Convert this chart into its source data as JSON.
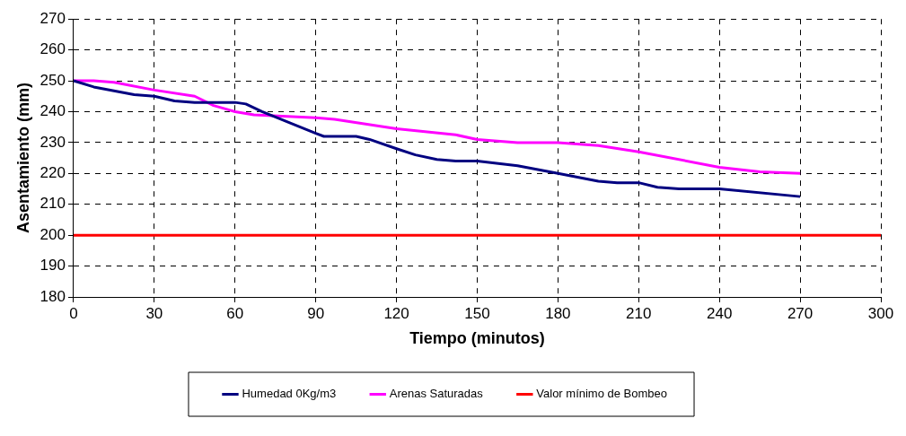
{
  "chart_data": {
    "type": "line",
    "xlabel": "Tiempo (minutos)",
    "ylabel": "Asentamiento (mm)",
    "xlim": [
      0,
      300
    ],
    "xticks": [
      0,
      30,
      60,
      90,
      120,
      150,
      180,
      210,
      240,
      270,
      300
    ],
    "ylim": [
      180,
      270
    ],
    "yticks": [
      180,
      190,
      200,
      210,
      220,
      230,
      240,
      250,
      260,
      270
    ],
    "grid": true,
    "legend": "bottom",
    "marker": "none",
    "line_style": "solid",
    "series": [
      {
        "name": "Humedad 0Kg/m3",
        "color": "#000080",
        "x": [
          0,
          7.5,
          22.5,
          30,
          37.5,
          45,
          60,
          64,
          70,
          90,
          93,
          105,
          110,
          120,
          127,
          135,
          142,
          150,
          165,
          180,
          195,
          202,
          210,
          217,
          225,
          240,
          270
        ],
        "values": [
          250,
          248,
          245.5,
          245,
          243.5,
          243,
          243,
          242.5,
          240,
          233,
          232,
          232,
          231,
          228,
          226,
          224.5,
          224,
          224,
          222.5,
          220,
          217.5,
          217,
          217,
          215.5,
          215,
          215,
          212.5
        ]
      },
      {
        "name": "Arenas Saturadas",
        "color": "#ff00ff",
        "x": [
          0,
          7.5,
          15,
          30,
          45,
          52,
          60,
          67,
          90,
          97,
          120,
          142,
          150,
          165,
          180,
          195,
          210,
          240,
          255,
          270
        ],
        "values": [
          250,
          250,
          249.5,
          247,
          245,
          242,
          240,
          239,
          238,
          237.5,
          234.5,
          232.5,
          231,
          230,
          230,
          229,
          227,
          222,
          220.5,
          220
        ]
      }
    ],
    "ref_lines": [
      {
        "axis": "y",
        "value": 200,
        "label": "Valor mínimo de Bombeo",
        "color": "#ff0000"
      }
    ]
  }
}
